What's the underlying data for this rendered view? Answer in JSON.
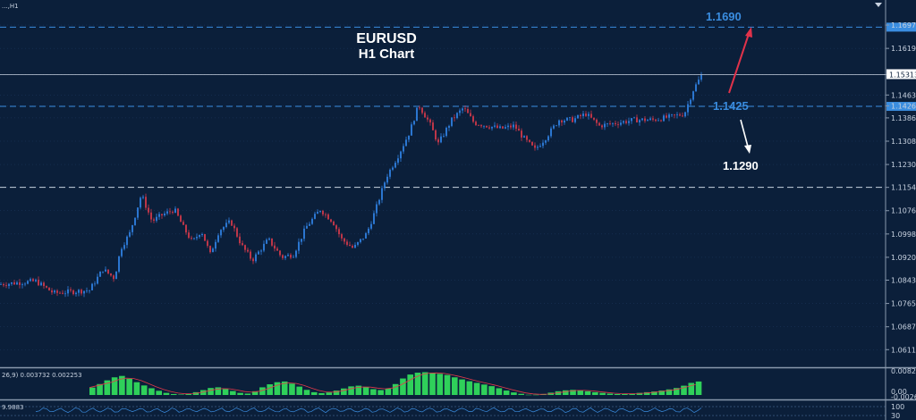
{
  "header": {
    "symbol_label": "...,H1"
  },
  "title": {
    "line1": "EURUSD",
    "line2": "H1 Chart"
  },
  "colors": {
    "background": "#0b1f3a",
    "grid": "#1e3a63",
    "bull": "#2f7fe0",
    "bear": "#d0384a",
    "level_line": "#3a8de0",
    "up_arrow": "#e0324a",
    "down_arrow": "#ffffff",
    "macd_hist": "#2fd05a",
    "macd_signal": "#e23a4a",
    "panel_sep": "#8a99ad"
  },
  "price_axis": {
    "ticks": [
      "1.16970",
      "1.16190",
      "1.15313",
      "1.14630",
      "1.14265",
      "1.13865",
      "1.13085",
      "1.12305",
      "1.11540",
      "1.10760",
      "1.09980",
      "1.09200",
      "1.08435",
      "1.07655",
      "1.06875",
      "1.06110"
    ],
    "current_price": "1.15313"
  },
  "annotations": {
    "target_up": "1.1690",
    "level_mid": "1.1425",
    "target_down": "1.1290"
  },
  "indicators": {
    "macd_label": "26,9) 0.003732 0.002253",
    "macd_axis": [
      "0.00821",
      "0.00",
      "-0.002603"
    ],
    "osc_label": "9.9883",
    "osc_axis": [
      "100",
      "30"
    ]
  },
  "chart_data": {
    "type": "candlestick",
    "title": "EURUSD H1 Chart",
    "timeframe": "H1",
    "ylim": [
      1.0555,
      1.1745
    ],
    "key_levels": [
      {
        "label": "1.1690",
        "value": 1.169,
        "style": "dashed"
      },
      {
        "label": "1.1425",
        "value": 1.1425,
        "style": "dashed"
      },
      {
        "value": 1.1154,
        "style": "dashed"
      }
    ],
    "price_path": [
      [
        0,
        1.083
      ],
      [
        40,
        1.084
      ],
      [
        60,
        1.08
      ],
      [
        100,
        1.081
      ],
      [
        115,
        1.088
      ],
      [
        128,
        1.085
      ],
      [
        135,
        1.095
      ],
      [
        145,
        1.1
      ],
      [
        158,
        1.113
      ],
      [
        170,
        1.104
      ],
      [
        180,
        1.106
      ],
      [
        195,
        1.108
      ],
      [
        205,
        1.102
      ],
      [
        215,
        1.097
      ],
      [
        225,
        1.101
      ],
      [
        235,
        1.093
      ],
      [
        245,
        1.101
      ],
      [
        258,
        1.104
      ],
      [
        270,
        1.096
      ],
      [
        282,
        1.091
      ],
      [
        300,
        1.098
      ],
      [
        315,
        1.092
      ],
      [
        328,
        1.093
      ],
      [
        342,
        1.102
      ],
      [
        358,
        1.108
      ],
      [
        372,
        1.104
      ],
      [
        382,
        1.098
      ],
      [
        395,
        1.095
      ],
      [
        410,
        1.1
      ],
      [
        420,
        1.108
      ],
      [
        432,
        1.119
      ],
      [
        445,
        1.126
      ],
      [
        458,
        1.134
      ],
      [
        468,
        1.143
      ],
      [
        480,
        1.137
      ],
      [
        490,
        1.13
      ],
      [
        505,
        1.138
      ],
      [
        518,
        1.142
      ],
      [
        530,
        1.137
      ],
      [
        545,
        1.136
      ],
      [
        560,
        1.135
      ],
      [
        575,
        1.136
      ],
      [
        585,
        1.132
      ],
      [
        598,
        1.128
      ],
      [
        610,
        1.132
      ],
      [
        625,
        1.138
      ],
      [
        640,
        1.138
      ],
      [
        655,
        1.14
      ],
      [
        670,
        1.136
      ],
      [
        690,
        1.137
      ],
      [
        710,
        1.138
      ],
      [
        730,
        1.138
      ],
      [
        750,
        1.139
      ],
      [
        765,
        1.14
      ],
      [
        775,
        1.148
      ],
      [
        785,
        1.1533
      ]
    ],
    "macd": {
      "label": "26,9) 0.003732 0.002253",
      "values": [
        0.0032,
        0.0047,
        0.0063,
        0.0076,
        0.0082,
        0.007,
        0.0055,
        0.0041,
        0.0029,
        0.0018,
        0.0009,
        0.0004,
        0.0002,
        0.0005,
        0.0012,
        0.0021,
        0.003,
        0.0033,
        0.0026,
        0.0017,
        0.0009,
        0.0006,
        0.0016,
        0.0033,
        0.0046,
        0.0055,
        0.0058,
        0.0049,
        0.0036,
        0.0022,
        0.0012,
        0.0008,
        0.0011,
        0.0019,
        0.0028,
        0.0037,
        0.004,
        0.0033,
        0.0025,
        0.0021,
        0.0027,
        0.0047,
        0.0071,
        0.0088,
        0.0096,
        0.0098,
        0.0095,
        0.0091,
        0.0086,
        0.0076,
        0.0067,
        0.0059,
        0.0052,
        0.0045,
        0.0038,
        0.0029,
        0.0019,
        0.0011,
        0.0005,
        0.0001,
        0.0001,
        0.0004,
        0.001,
        0.0016,
        0.002,
        0.0022,
        0.002,
        0.0016,
        0.0012,
        0.0009,
        0.0006,
        0.0004,
        0.0004,
        0.0006,
        0.0009,
        0.0012,
        0.0015,
        0.0019,
        0.0024,
        0.003,
        0.004,
        0.0052,
        0.0058
      ]
    }
  }
}
